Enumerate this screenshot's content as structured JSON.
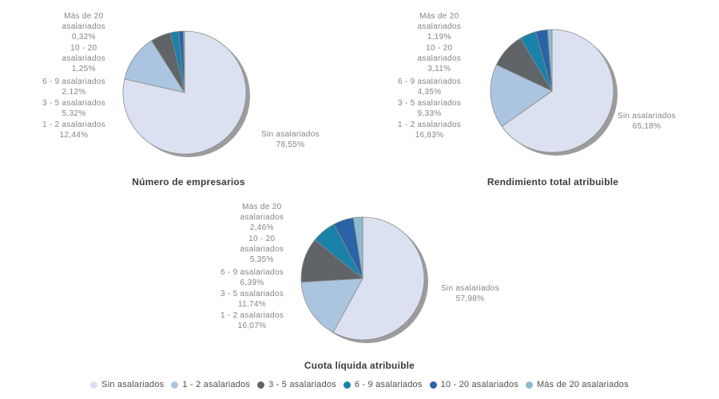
{
  "palette": [
    "#dbe1f0",
    "#abc5e1",
    "#606367",
    "#1a81a9",
    "#2a63a7",
    "#8fbbce"
  ],
  "stroke_color": "#8a8a8a",
  "shadow_color": "#9c9c9c",
  "chart_data": [
    {
      "type": "pie",
      "title": "Número de empresarios",
      "categories": [
        "Sin asalariados",
        "1 - 2 asalariados",
        "3 - 5 asalariados",
        "6 - 9 asalariados",
        "10 - 20 asalariados",
        "Más de 20 asalariados"
      ],
      "values": [
        78.55,
        12.44,
        5.32,
        2.12,
        1.25,
        0.32
      ],
      "legend_position": "bottom",
      "slice_labels": {
        "sin": [
          "Sin asalariados",
          "78,55%"
        ],
        "a1_2": [
          "1 - 2 asalariados",
          "12,44%"
        ],
        "a3_5": [
          "3 - 5 asalariados",
          "5,32%"
        ],
        "a6_9": [
          "6 - 9 asalariados",
          "2,12%"
        ],
        "a10_20": [
          "10 - 20",
          "asalariados",
          "1,25%"
        ],
        "mas20": [
          "Más de 20",
          "asalariados",
          "0,32%"
        ]
      }
    },
    {
      "type": "pie",
      "title": "Rendimiento total atribuible",
      "categories": [
        "Sin asalariados",
        "1 - 2 asalariados",
        "3 - 5 asalariados",
        "6 - 9 asalariados",
        "10 - 20 asalariados",
        "Más de 20 asalariados"
      ],
      "values": [
        65.18,
        16.83,
        9.33,
        4.35,
        3.11,
        1.19
      ],
      "legend_position": "bottom",
      "slice_labels": {
        "sin": [
          "Sin asalariados",
          "65,18%"
        ],
        "a1_2": [
          "1 - 2 asalariados",
          "16,83%"
        ],
        "a3_5": [
          "3 - 5 asalariados",
          "9,33%"
        ],
        "a6_9": [
          "6 - 9 asalariados",
          "4,35%"
        ],
        "a10_20": [
          "10 - 20",
          "asalariados",
          "3,11%"
        ],
        "mas20": [
          "Más de 20",
          "asalariados",
          "1,19%"
        ]
      }
    },
    {
      "type": "pie",
      "title": "Cuota líquida atribuible",
      "categories": [
        "Sin asalariados",
        "1 - 2 asalariados",
        "3 - 5 asalariados",
        "6 - 9 asalariados",
        "10 - 20 asalariados",
        "Más de 20 asalariados"
      ],
      "values": [
        57.98,
        16.07,
        11.74,
        6.39,
        5.35,
        2.46
      ],
      "legend_position": "bottom",
      "slice_labels": {
        "sin": [
          "Sin asalariados",
          "57,98%"
        ],
        "a1_2": [
          "1 - 2 asalariados",
          "16,07%"
        ],
        "a3_5": [
          "3 - 5 asalariados",
          "11,74%"
        ],
        "a6_9": [
          "6 - 9 asalariados",
          "6,39%"
        ],
        "a10_20": [
          "10 - 20",
          "asalariados",
          "5,35%"
        ],
        "mas20": [
          "Más de 20",
          "asalariados",
          "2,46%"
        ]
      }
    }
  ],
  "legend": {
    "items": [
      {
        "label": "Sin asalariados",
        "color": "#dbe1f0"
      },
      {
        "label": "1 - 2 asalariados",
        "color": "#abc5e1"
      },
      {
        "label": "3 - 5 asalariados",
        "color": "#606367"
      },
      {
        "label": "6 - 9 asalariados",
        "color": "#1a81a9"
      },
      {
        "label": "10 - 20 asalariados",
        "color": "#2a63a7"
      },
      {
        "label": "Más de 20 asalariados",
        "color": "#8fbbce"
      }
    ]
  }
}
